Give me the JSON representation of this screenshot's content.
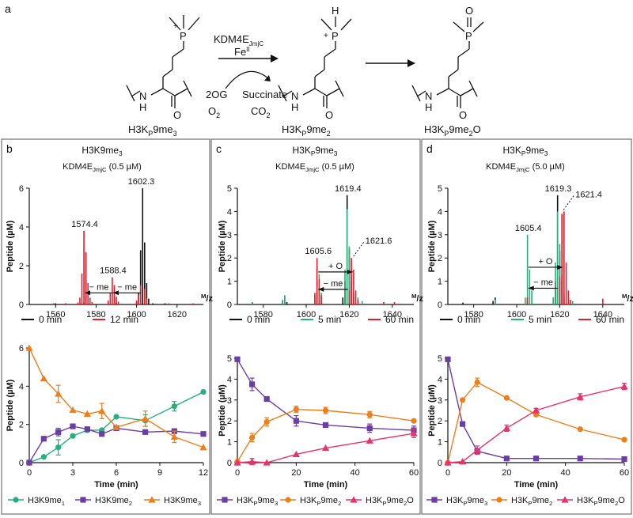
{
  "colors": {
    "black": "#111111",
    "red": "#e0202f",
    "green": "#25b07c",
    "purple": "#6a3ea6",
    "orange": "#ef7d1a",
    "pink": "#e8336b",
    "frame": "#555555"
  },
  "panel_a": {
    "label": "a",
    "enzyme": "KDM4E",
    "enzyme_sub": "JmjC",
    "metal": "Fe",
    "metal_sup": "II",
    "cofactor_1": "2OG",
    "cofactor_2": "O",
    "cofactor_2_sub": "2",
    "product_1": "Succinate",
    "product_2": "CO",
    "product_2_sub": "2",
    "struct_1": {
      "text_a": "H3K",
      "sub_a": "P",
      "text_b": "9me",
      "sub_b": "3"
    },
    "struct_2": {
      "text_a": "H3K",
      "sub_a": "P",
      "text_b": "9me",
      "sub_b": "2"
    },
    "struct_3": {
      "text_a": "H3K",
      "sub_a": "P",
      "text_b": "9me",
      "sub_b": "2",
      "text_c": "O"
    },
    "atom_P": "P",
    "atom_H": "H",
    "atom_O": "O",
    "atom_N": "N",
    "atom_NH": "H",
    "charge": "+"
  },
  "chart_data": [
    {
      "id": "b-top",
      "type": "bar",
      "panel_label": "b",
      "title": "H3K9me",
      "title_sub": "3",
      "condition": "KDM4E",
      "condition_sub": "JmjC",
      "condition_tail": " (0.5 µM)",
      "xlabel": "M/z",
      "ylabel": "Peptide (µM)",
      "xlim": [
        1547,
        1633
      ],
      "ylim": [
        0,
        6
      ],
      "xticks": [
        1560,
        1580,
        1600,
        1620
      ],
      "yticks": [
        0,
        2,
        4,
        6
      ],
      "series": [
        {
          "name": "0 min",
          "color": "black",
          "peaks": [
            [
              1560,
              0.06
            ],
            [
              1574,
              0.1
            ],
            [
              1590,
              0.1
            ],
            [
              1600,
              0.15
            ],
            [
              1601,
              0.6
            ],
            [
              1602,
              2.8
            ],
            [
              1603,
              6.0
            ],
            [
              1604,
              3.2
            ],
            [
              1605,
              1.1
            ],
            [
              1606,
              0.3
            ],
            [
              1608,
              0.06
            ],
            [
              1614,
              0.06
            ]
          ]
        },
        {
          "name": "12 min",
          "color": "red",
          "peaks": [
            [
              1559,
              0.06
            ],
            [
              1565,
              0.07
            ],
            [
              1571,
              0.1
            ],
            [
              1572,
              0.35
            ],
            [
              1573,
              1.6
            ],
            [
              1574,
              3.8
            ],
            [
              1575,
              2.7
            ],
            [
              1576,
              1.1
            ],
            [
              1577,
              0.35
            ],
            [
              1578,
              0.12
            ],
            [
              1586,
              0.2
            ],
            [
              1587,
              0.6
            ],
            [
              1588,
              1.4
            ],
            [
              1589,
              1.0
            ],
            [
              1590,
              0.4
            ],
            [
              1591,
              0.15
            ],
            [
              1600,
              0.2
            ],
            [
              1601,
              0.5
            ],
            [
              1602,
              1.0
            ],
            [
              1604,
              0.8
            ],
            [
              1605,
              0.3
            ],
            [
              1616,
              0.06
            ],
            [
              1628,
              0.06
            ]
          ]
        }
      ],
      "annotations": [
        {
          "text": "1602.3",
          "x": 1602.3,
          "y": 6.0
        },
        {
          "text": "1574.4",
          "x": 1574.4,
          "y": 3.8
        },
        {
          "text": "1588.4",
          "x": 1588.4,
          "y": 1.4
        }
      ],
      "arrows": [
        {
          "text": "− me",
          "from": 1588.4,
          "to": 1574.4,
          "y": 0.6
        },
        {
          "text": "− me",
          "from": 1602.3,
          "to": 1588.4,
          "y": 0.6
        }
      ]
    },
    {
      "id": "b-bottom",
      "type": "line",
      "xlabel": "Time (min)",
      "ylabel": "Peptide (µM)",
      "xlim": [
        0,
        12
      ],
      "ylim": [
        0,
        6
      ],
      "xticks": [
        0,
        3,
        6,
        9,
        12
      ],
      "yticks": [
        0,
        2,
        4,
        6
      ],
      "series": [
        {
          "name": "H3K9me",
          "name_sub": "1",
          "color": "green",
          "marker": "circle",
          "x": [
            0,
            1,
            2,
            3,
            4,
            5,
            6,
            8,
            10,
            12
          ],
          "y": [
            0,
            0.3,
            0.8,
            1.4,
            1.7,
            1.7,
            2.4,
            2.2,
            2.95,
            3.7
          ],
          "err": [
            0,
            0,
            0.4,
            0,
            0,
            0,
            0,
            0.3,
            0.25,
            0
          ]
        },
        {
          "name": "H3K9me",
          "name_sub": "2",
          "color": "purple",
          "marker": "square",
          "x": [
            0,
            1,
            2,
            3,
            4,
            5,
            6,
            8,
            10,
            12
          ],
          "y": [
            0,
            1.25,
            1.6,
            1.9,
            1.75,
            1.5,
            1.8,
            1.6,
            1.65,
            1.5
          ],
          "err": [
            0,
            0,
            0.2,
            0,
            0,
            0,
            0,
            0,
            0,
            0
          ]
        },
        {
          "name": "H3K9me",
          "name_sub": "3",
          "color": "orange",
          "marker": "triangle",
          "x": [
            0,
            1,
            2,
            3,
            4,
            5,
            6,
            8,
            10,
            12
          ],
          "y": [
            6,
            4.4,
            3.6,
            2.75,
            2.55,
            2.7,
            1.85,
            2.3,
            1.35,
            0.8
          ],
          "err": [
            0,
            0,
            0.45,
            0,
            0,
            0.4,
            0,
            0.4,
            0.3,
            0
          ]
        }
      ]
    },
    {
      "id": "c-top",
      "type": "bar",
      "panel_label": "c",
      "title": "H3K",
      "title_sub": "P",
      "title_b": "9me",
      "title_b_sub": "3",
      "condition": "KDM4E",
      "condition_sub": "JmjC",
      "condition_tail": " (0.5 µM)",
      "xlabel": "M/z",
      "ylabel": "Peptide (µM)",
      "xlim": [
        1568,
        1650
      ],
      "ylim": [
        0,
        5
      ],
      "xticks": [
        1580,
        1600,
        1620,
        1640
      ],
      "yticks": [
        0,
        1,
        2,
        3,
        4,
        5
      ],
      "series": [
        {
          "name": "0 min",
          "color": "black",
          "peaks": [
            [
              1575,
              0.08
            ],
            [
              1589,
              0.15
            ],
            [
              1590,
              0.35
            ],
            [
              1591,
              0.1
            ],
            [
              1605,
              0.3
            ],
            [
              1606,
              0.1
            ],
            [
              1617,
              0.3
            ],
            [
              1618,
              1.0
            ],
            [
              1619,
              4.7
            ],
            [
              1620,
              2.4
            ],
            [
              1621,
              1.0
            ],
            [
              1622,
              0.3
            ]
          ]
        },
        {
          "name": "5 min",
          "color": "green",
          "peaks": [
            [
              1575,
              0.1
            ],
            [
              1589,
              0.2
            ],
            [
              1590,
              0.4
            ],
            [
              1604,
              0.4
            ],
            [
              1605,
              1.6
            ],
            [
              1606,
              1.3
            ],
            [
              1607,
              0.5
            ],
            [
              1618,
              1.5
            ],
            [
              1619,
              4.1
            ],
            [
              1620,
              2.5
            ],
            [
              1621,
              1.2
            ],
            [
              1622,
              0.5
            ],
            [
              1624,
              0.3
            ],
            [
              1626,
              0.15
            ]
          ]
        },
        {
          "name": "60 min",
          "color": "red",
          "peaks": [
            [
              1604,
              0.5
            ],
            [
              1605,
              2.0
            ],
            [
              1606,
              1.1
            ],
            [
              1607,
              0.4
            ],
            [
              1620,
              0.6
            ],
            [
              1621,
              2.0
            ],
            [
              1622,
              1.5
            ],
            [
              1623,
              0.6
            ],
            [
              1624,
              0.2
            ],
            [
              1636,
              0.1
            ],
            [
              1641,
              0.1
            ]
          ]
        }
      ],
      "annotations": [
        {
          "text": "1619.4",
          "x": 1619.4,
          "y": 4.7
        },
        {
          "text": "1605.6",
          "x": 1605.6,
          "y": 2.0
        },
        {
          "text": "1621.6",
          "x": 1621.6,
          "y": 2.0,
          "dotted": true
        }
      ],
      "arrows": [
        {
          "text": "+ O",
          "from": 1605.6,
          "to": 1621.6,
          "y": 1.4
        },
        {
          "text": "− me",
          "from": 1619.4,
          "to": 1605.6,
          "y": 0.65
        }
      ]
    },
    {
      "id": "c-bottom",
      "type": "line",
      "xlabel": "Time (min)",
      "ylabel": "Peptide (µM)",
      "xlim": [
        0,
        60
      ],
      "ylim": [
        0,
        5
      ],
      "xticks": [
        0,
        20,
        40,
        60
      ],
      "yticks": [
        0,
        1,
        2,
        3,
        4,
        5
      ],
      "series": [
        {
          "name": "H3K",
          "name_sub": "P",
          "name_b": "9me",
          "name_b_sub": "3",
          "color": "purple",
          "marker": "square",
          "x": [
            0,
            5,
            10,
            20,
            30,
            45,
            60
          ],
          "y": [
            4.95,
            3.75,
            3.05,
            2.0,
            1.8,
            1.65,
            1.55
          ],
          "err": [
            0,
            0.3,
            0,
            0.25,
            0,
            0.2,
            0.2
          ]
        },
        {
          "name": "H3K",
          "name_sub": "P",
          "name_b": "9me",
          "name_b_sub": "2",
          "color": "orange",
          "marker": "circle",
          "x": [
            0,
            5,
            10,
            20,
            30,
            45,
            60
          ],
          "y": [
            0.05,
            1.2,
            1.95,
            2.55,
            2.5,
            2.3,
            2.0
          ],
          "err": [
            0,
            0.2,
            0.2,
            0.15,
            0.15,
            0.15,
            0
          ]
        },
        {
          "name": "H3K",
          "name_sub": "P",
          "name_b": "9me",
          "name_b_sub": "2",
          "name_c": "O",
          "color": "pink",
          "marker": "triangle",
          "x": [
            0,
            5,
            10,
            20,
            30,
            45,
            60
          ],
          "y": [
            0,
            0.05,
            0,
            0.4,
            0.7,
            1.05,
            1.4
          ],
          "err": [
            0,
            0.15,
            0,
            0,
            0,
            0,
            0.2
          ]
        }
      ]
    },
    {
      "id": "d-top",
      "type": "bar",
      "panel_label": "d",
      "title": "H3K",
      "title_sub": "P",
      "title_b": "9me",
      "title_b_sub": "3",
      "condition": "KDM4E",
      "condition_sub": "JmjC",
      "condition_tail": " (5.0 µM)",
      "xlabel": "M/z",
      "ylabel": "Peptide (µM)",
      "xlim": [
        1568,
        1650
      ],
      "ylim": [
        0,
        5
      ],
      "xticks": [
        1580,
        1600,
        1620,
        1640
      ],
      "yticks": [
        0,
        1,
        2,
        3,
        4,
        5
      ],
      "series": [
        {
          "name": "0 min",
          "color": "black",
          "peaks": [
            [
              1575,
              0.08
            ],
            [
              1589,
              0.15
            ],
            [
              1590,
              0.3
            ],
            [
              1605,
              0.3
            ],
            [
              1617,
              0.3
            ],
            [
              1618,
              1.0
            ],
            [
              1619,
              4.7
            ],
            [
              1620,
              2.3
            ],
            [
              1621,
              1.0
            ],
            [
              1622,
              0.3
            ]
          ]
        },
        {
          "name": "5 min",
          "color": "green",
          "peaks": [
            [
              1590,
              0.2
            ],
            [
              1604,
              0.3
            ],
            [
              1605,
              3.0
            ],
            [
              1606,
              1.5
            ],
            [
              1607,
              0.6
            ],
            [
              1617,
              0.3
            ],
            [
              1618,
              1.8
            ],
            [
              1619,
              4.0
            ],
            [
              1620,
              2.6
            ],
            [
              1621,
              1.3
            ],
            [
              1622,
              0.5
            ],
            [
              1624,
              0.3
            ],
            [
              1626,
              0.15
            ]
          ]
        },
        {
          "name": "60 min",
          "color": "red",
          "peaks": [
            [
              1605,
              0.3
            ],
            [
              1620,
              1.2
            ],
            [
              1621,
              3.9
            ],
            [
              1622,
              4.0
            ],
            [
              1623,
              1.8
            ],
            [
              1624,
              0.6
            ],
            [
              1625,
              0.2
            ],
            [
              1640,
              0.25
            ]
          ]
        }
      ],
      "annotations": [
        {
          "text": "1619.3",
          "x": 1619.3,
          "y": 4.7
        },
        {
          "text": "1605.4",
          "x": 1605.4,
          "y": 3.0
        },
        {
          "text": "1621.4",
          "x": 1621.4,
          "y": 4.0,
          "dotted": true
        }
      ],
      "arrows": [
        {
          "text": "+ O",
          "from": 1605.4,
          "to": 1621.4,
          "y": 1.6
        },
        {
          "text": "− me",
          "from": 1619.3,
          "to": 1605.4,
          "y": 0.7
        }
      ]
    },
    {
      "id": "d-bottom",
      "type": "line",
      "xlabel": "Time (min)",
      "ylabel": "Peptide (µM)",
      "xlim": [
        0,
        60
      ],
      "ylim": [
        0,
        5
      ],
      "xticks": [
        0,
        20,
        40,
        60
      ],
      "yticks": [
        0,
        1,
        2,
        3,
        4,
        5
      ],
      "series": [
        {
          "name": "H3K",
          "name_sub": "P",
          "name_b": "9me",
          "name_b_sub": "3",
          "color": "purple",
          "marker": "square",
          "x": [
            0,
            5,
            10,
            20,
            30,
            45,
            60
          ],
          "y": [
            4.95,
            1.85,
            0.55,
            0.2,
            0.2,
            0.2,
            0.17
          ],
          "err": [
            0,
            0,
            0,
            0,
            0,
            0,
            0
          ]
        },
        {
          "name": "H3K",
          "name_sub": "P",
          "name_b": "9me",
          "name_b_sub": "2",
          "color": "orange",
          "marker": "circle",
          "x": [
            0,
            5,
            10,
            20,
            30,
            45,
            60
          ],
          "y": [
            0,
            3.0,
            3.85,
            3.1,
            2.3,
            1.6,
            1.1
          ],
          "err": [
            0,
            0,
            0.2,
            0,
            0,
            0,
            0
          ]
        },
        {
          "name": "H3K",
          "name_sub": "P",
          "name_b": "9me",
          "name_b_sub": "2",
          "name_c": "O",
          "color": "pink",
          "marker": "triangle",
          "x": [
            0,
            5,
            10,
            20,
            30,
            45,
            60
          ],
          "y": [
            0,
            0.05,
            0.6,
            1.65,
            2.5,
            3.15,
            3.65
          ],
          "err": [
            0,
            0,
            0.2,
            0.15,
            0.1,
            0.15,
            0.15
          ]
        }
      ]
    }
  ]
}
